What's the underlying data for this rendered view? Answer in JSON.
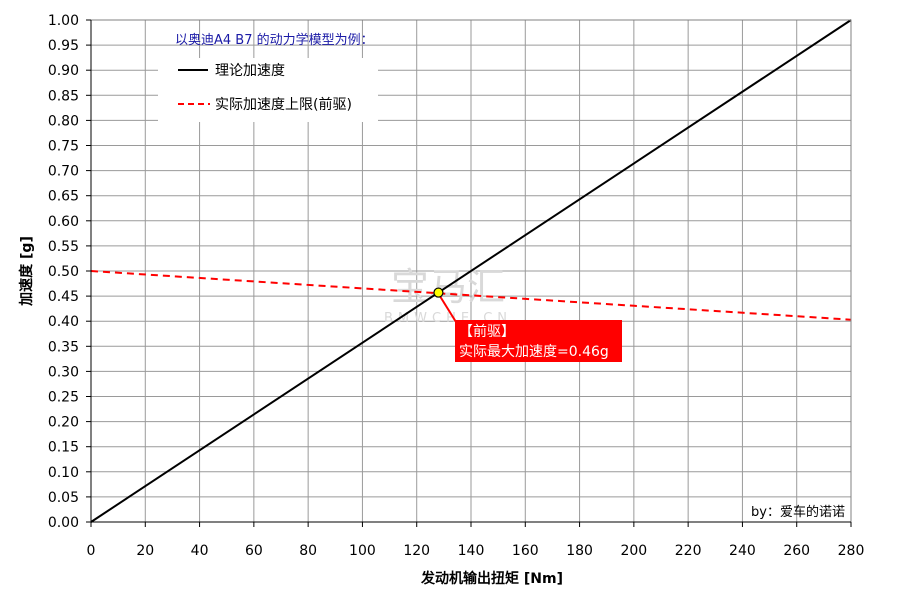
{
  "chart_data": {
    "type": "line",
    "xlabel": "发动机输出扭矩 [Nm]",
    "ylabel": "加速度 [g]",
    "xlim": [
      0,
      280
    ],
    "ylim": [
      0,
      1.0
    ],
    "x_ticks": [
      "0",
      "20",
      "40",
      "60",
      "80",
      "100",
      "120",
      "140",
      "160",
      "180",
      "200",
      "220",
      "240",
      "260",
      "280"
    ],
    "y_ticks": [
      "0.00",
      "0.05",
      "0.10",
      "0.15",
      "0.20",
      "0.25",
      "0.30",
      "0.35",
      "0.40",
      "0.45",
      "0.50",
      "0.55",
      "0.60",
      "0.65",
      "0.70",
      "0.75",
      "0.80",
      "0.85",
      "0.90",
      "0.95",
      "1.00"
    ],
    "grid": true,
    "legend_title": "以奥迪A4 B7 的动力学模型为例：",
    "legend_position": "top-left",
    "series": [
      {
        "name": "理论加速度",
        "color": "#000000",
        "style": "solid",
        "x": [
          0,
          280
        ],
        "y": [
          0.0,
          1.0
        ]
      },
      {
        "name": "实际加速度上限(前驱)",
        "color": "#ff0000",
        "style": "dashed",
        "x": [
          0,
          280
        ],
        "y": [
          0.5,
          0.403
        ]
      }
    ],
    "intersection": {
      "x": 128,
      "y": 0.457,
      "color": "#ffff00"
    },
    "annotation": {
      "line1": "【前驱】",
      "line2": "实际最大加速度=0.46g",
      "bg": "#ff0000"
    },
    "credit": "by：爱车的诺诺",
    "watermark": {
      "main": "宝马汇",
      "sub": "BMWCHE.CN"
    }
  }
}
